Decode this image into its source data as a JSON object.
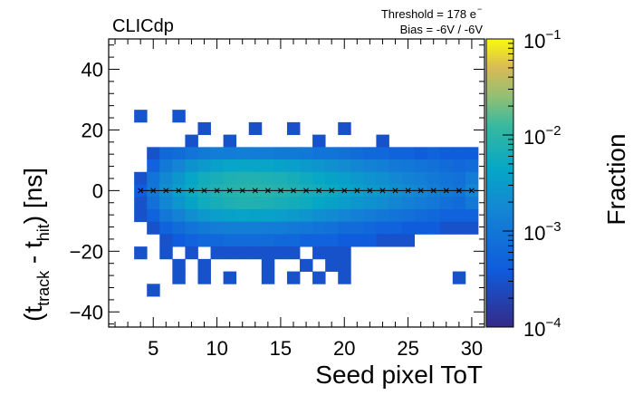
{
  "chart_data": {
    "type": "heatmap",
    "title": "CLICdp",
    "annotations": {
      "threshold": "Threshold = 178 e",
      "threshold_sup": "−",
      "bias": "Bias = -6V / -6V"
    },
    "xlabel": "Seed pixel ToT",
    "ylabel": {
      "open": "(t",
      "sub1": "track",
      "mid": " - t",
      "sub2": "hit",
      "close": ") [ns]"
    },
    "zlabel": "Fraction",
    "xlim": [
      1.5,
      31
    ],
    "ylim": [
      -45,
      50
    ],
    "x_ticks": [
      5,
      10,
      15,
      20,
      25,
      30
    ],
    "y_ticks": [
      -40,
      -20,
      0,
      20,
      40
    ],
    "x_tick_labels": [
      "5",
      "10",
      "15",
      "20",
      "25",
      "30"
    ],
    "y_tick_labels": [
      "−40",
      "−20",
      "0",
      "20",
      "40"
    ],
    "z_scale": "log",
    "zlim": [
      0.0001,
      0.1
    ],
    "z_ticks": [
      {
        "base": "10",
        "exp": "−1",
        "value": 0.1
      },
      {
        "base": "10",
        "exp": "−2",
        "value": 0.01
      },
      {
        "base": "10",
        "exp": "−3",
        "value": 0.001
      },
      {
        "base": "10",
        "exp": "−4",
        "value": 0.0001
      }
    ],
    "bin_width_x": 1,
    "bin_height_y": 4.1,
    "mean_profile": {
      "marker": "x",
      "x": [
        4,
        5,
        6,
        7,
        8,
        9,
        10,
        11,
        12,
        13,
        14,
        15,
        16,
        17,
        18,
        19,
        20,
        21,
        22,
        23,
        24,
        25,
        26,
        27,
        28,
        29,
        30
      ],
      "y": [
        0,
        0,
        0,
        0,
        0,
        0,
        0,
        0,
        0,
        0,
        0,
        0,
        0,
        0,
        0,
        0,
        0,
        0,
        0,
        0,
        0,
        0,
        0,
        0,
        0,
        0,
        0
      ]
    },
    "cells": [
      [
        4,
        24.6,
        0.00032
      ],
      [
        7,
        24.6,
        0.00032
      ],
      [
        9,
        20.5,
        0.00028
      ],
      [
        13,
        20.5,
        0.00028
      ],
      [
        16,
        20.5,
        0.00028
      ],
      [
        20,
        20.5,
        0.00028
      ],
      [
        8,
        16.4,
        0.0003
      ],
      [
        11,
        16.4,
        0.0003
      ],
      [
        18,
        16.4,
        0.0003
      ],
      [
        23,
        16.4,
        0.0003
      ],
      [
        5,
        12.3,
        0.0003
      ],
      [
        6,
        12.3,
        0.0006
      ],
      [
        7,
        12.3,
        0.0007
      ],
      [
        8,
        12.3,
        0.0009
      ],
      [
        9,
        12.3,
        0.0011
      ],
      [
        10,
        12.3,
        0.0012
      ],
      [
        11,
        12.3,
        0.0012
      ],
      [
        12,
        12.3,
        0.0013
      ],
      [
        13,
        12.3,
        0.0012
      ],
      [
        14,
        12.3,
        0.0012
      ],
      [
        15,
        12.3,
        0.0011
      ],
      [
        16,
        12.3,
        0.0011
      ],
      [
        17,
        12.3,
        0.001
      ],
      [
        18,
        12.3,
        0.0009
      ],
      [
        19,
        12.3,
        0.0009
      ],
      [
        20,
        12.3,
        0.0008
      ],
      [
        21,
        12.3,
        0.0007
      ],
      [
        22,
        12.3,
        0.0006
      ],
      [
        23,
        12.3,
        0.0006
      ],
      [
        24,
        12.3,
        0.0005
      ],
      [
        25,
        12.3,
        0.0005
      ],
      [
        26,
        12.3,
        0.0004
      ],
      [
        27,
        12.3,
        0.0005
      ],
      [
        28,
        12.3,
        0.0004
      ],
      [
        29,
        12.3,
        0.0004
      ],
      [
        30,
        12.3,
        0.0004
      ],
      [
        5,
        8.2,
        0.0005
      ],
      [
        6,
        8.2,
        0.0011
      ],
      [
        7,
        8.2,
        0.0016
      ],
      [
        8,
        8.2,
        0.0024
      ],
      [
        9,
        8.2,
        0.003
      ],
      [
        10,
        8.2,
        0.0036
      ],
      [
        11,
        8.2,
        0.0042
      ],
      [
        12,
        8.2,
        0.0045
      ],
      [
        13,
        8.2,
        0.0042
      ],
      [
        14,
        8.2,
        0.0042
      ],
      [
        15,
        8.2,
        0.0038
      ],
      [
        16,
        8.2,
        0.0034
      ],
      [
        17,
        8.2,
        0.003
      ],
      [
        18,
        8.2,
        0.0026
      ],
      [
        19,
        8.2,
        0.0023
      ],
      [
        20,
        8.2,
        0.002
      ],
      [
        21,
        8.2,
        0.0017
      ],
      [
        22,
        8.2,
        0.0015
      ],
      [
        23,
        8.2,
        0.0013
      ],
      [
        24,
        8.2,
        0.0011
      ],
      [
        25,
        8.2,
        0.001
      ],
      [
        26,
        8.2,
        0.0009
      ],
      [
        27,
        8.2,
        0.0008
      ],
      [
        28,
        8.2,
        0.0007
      ],
      [
        29,
        8.2,
        0.0006
      ],
      [
        30,
        8.2,
        0.0007
      ],
      [
        4,
        4.1,
        0.0003
      ],
      [
        5,
        4.1,
        0.0009
      ],
      [
        6,
        4.1,
        0.0018
      ],
      [
        7,
        4.1,
        0.0028
      ],
      [
        8,
        4.1,
        0.0042
      ],
      [
        9,
        4.1,
        0.0058
      ],
      [
        10,
        4.1,
        0.0066
      ],
      [
        11,
        4.1,
        0.0075
      ],
      [
        12,
        4.1,
        0.008
      ],
      [
        13,
        4.1,
        0.0078
      ],
      [
        14,
        4.1,
        0.0074
      ],
      [
        15,
        4.1,
        0.007
      ],
      [
        16,
        4.1,
        0.0062
      ],
      [
        17,
        4.1,
        0.0054
      ],
      [
        18,
        4.1,
        0.0046
      ],
      [
        19,
        4.1,
        0.004
      ],
      [
        20,
        4.1,
        0.0034
      ],
      [
        21,
        4.1,
        0.0029
      ],
      [
        22,
        4.1,
        0.0025
      ],
      [
        23,
        4.1,
        0.0022
      ],
      [
        24,
        4.1,
        0.0018
      ],
      [
        25,
        4.1,
        0.0015
      ],
      [
        26,
        4.1,
        0.0013
      ],
      [
        27,
        4.1,
        0.0011
      ],
      [
        28,
        4.1,
        0.0009
      ],
      [
        29,
        4.1,
        0.0008
      ],
      [
        30,
        4.1,
        0.0012
      ],
      [
        4,
        0,
        0.0004
      ],
      [
        5,
        0,
        0.001
      ],
      [
        6,
        0,
        0.0022
      ],
      [
        7,
        0,
        0.0034
      ],
      [
        8,
        0,
        0.005
      ],
      [
        9,
        0,
        0.0066
      ],
      [
        10,
        0,
        0.0078
      ],
      [
        11,
        0,
        0.0086
      ],
      [
        12,
        0,
        0.0092
      ],
      [
        13,
        0,
        0.0094
      ],
      [
        14,
        0,
        0.009
      ],
      [
        15,
        0,
        0.0085
      ],
      [
        16,
        0,
        0.0076
      ],
      [
        17,
        0,
        0.0066
      ],
      [
        18,
        0,
        0.0058
      ],
      [
        19,
        0,
        0.005
      ],
      [
        20,
        0,
        0.0042
      ],
      [
        21,
        0,
        0.0036
      ],
      [
        22,
        0,
        0.003
      ],
      [
        23,
        0,
        0.0026
      ],
      [
        24,
        0,
        0.0022
      ],
      [
        25,
        0,
        0.0019
      ],
      [
        26,
        0,
        0.0016
      ],
      [
        27,
        0,
        0.0013
      ],
      [
        28,
        0,
        0.0011
      ],
      [
        29,
        0,
        0.0009
      ],
      [
        30,
        0,
        0.0016
      ],
      [
        4,
        -4.1,
        0.0003
      ],
      [
        5,
        -4.1,
        0.0008
      ],
      [
        6,
        -4.1,
        0.0017
      ],
      [
        7,
        -4.1,
        0.0026
      ],
      [
        8,
        -4.1,
        0.004
      ],
      [
        9,
        -4.1,
        0.0055
      ],
      [
        10,
        -4.1,
        0.0064
      ],
      [
        11,
        -4.1,
        0.0072
      ],
      [
        12,
        -4.1,
        0.0078
      ],
      [
        13,
        -4.1,
        0.0076
      ],
      [
        14,
        -4.1,
        0.0072
      ],
      [
        15,
        -4.1,
        0.0066
      ],
      [
        16,
        -4.1,
        0.006
      ],
      [
        17,
        -4.1,
        0.0052
      ],
      [
        18,
        -4.1,
        0.0045
      ],
      [
        19,
        -4.1,
        0.0038
      ],
      [
        20,
        -4.1,
        0.0032
      ],
      [
        21,
        -4.1,
        0.0027
      ],
      [
        22,
        -4.1,
        0.0023
      ],
      [
        23,
        -4.1,
        0.002
      ],
      [
        24,
        -4.1,
        0.0017
      ],
      [
        25,
        -4.1,
        0.0014
      ],
      [
        26,
        -4.1,
        0.0012
      ],
      [
        27,
        -4.1,
        0.001
      ],
      [
        28,
        -4.1,
        0.0008
      ],
      [
        29,
        -4.1,
        0.0007
      ],
      [
        30,
        -4.1,
        0.0011
      ],
      [
        4,
        -8.2,
        0.0003
      ],
      [
        5,
        -8.2,
        0.0005
      ],
      [
        6,
        -8.2,
        0.001
      ],
      [
        7,
        -8.2,
        0.0015
      ],
      [
        8,
        -8.2,
        0.0022
      ],
      [
        9,
        -8.2,
        0.0029
      ],
      [
        10,
        -8.2,
        0.0034
      ],
      [
        11,
        -8.2,
        0.0038
      ],
      [
        12,
        -8.2,
        0.0041
      ],
      [
        13,
        -8.2,
        0.004
      ],
      [
        14,
        -8.2,
        0.0038
      ],
      [
        15,
        -8.2,
        0.0034
      ],
      [
        16,
        -8.2,
        0.003
      ],
      [
        17,
        -8.2,
        0.0026
      ],
      [
        18,
        -8.2,
        0.0022
      ],
      [
        19,
        -8.2,
        0.0019
      ],
      [
        20,
        -8.2,
        0.0016
      ],
      [
        21,
        -8.2,
        0.0014
      ],
      [
        22,
        -8.2,
        0.0012
      ],
      [
        23,
        -8.2,
        0.001
      ],
      [
        24,
        -8.2,
        0.0009
      ],
      [
        25,
        -8.2,
        0.0008
      ],
      [
        26,
        -8.2,
        0.0007
      ],
      [
        27,
        -8.2,
        0.0006
      ],
      [
        28,
        -8.2,
        0.0005
      ],
      [
        29,
        -8.2,
        0.0005
      ],
      [
        30,
        -8.2,
        0.0005
      ],
      [
        5,
        -12.3,
        0.0003
      ],
      [
        6,
        -12.3,
        0.0005
      ],
      [
        7,
        -12.3,
        0.0007
      ],
      [
        8,
        -12.3,
        0.0009
      ],
      [
        9,
        -12.3,
        0.0011
      ],
      [
        10,
        -12.3,
        0.0012
      ],
      [
        11,
        -12.3,
        0.0013
      ],
      [
        12,
        -12.3,
        0.0013
      ],
      [
        13,
        -12.3,
        0.0013
      ],
      [
        14,
        -12.3,
        0.0012
      ],
      [
        15,
        -12.3,
        0.0012
      ],
      [
        16,
        -12.3,
        0.0011
      ],
      [
        17,
        -12.3,
        0.001
      ],
      [
        18,
        -12.3,
        0.0009
      ],
      [
        19,
        -12.3,
        0.0008
      ],
      [
        20,
        -12.3,
        0.0007
      ],
      [
        21,
        -12.3,
        0.0007
      ],
      [
        22,
        -12.3,
        0.0006
      ],
      [
        23,
        -12.3,
        0.0005
      ],
      [
        24,
        -12.3,
        0.0005
      ],
      [
        25,
        -12.3,
        0.0004
      ],
      [
        26,
        -12.3,
        0.0004
      ],
      [
        27,
        -12.3,
        0.0004
      ],
      [
        28,
        -12.3,
        0.0003
      ],
      [
        29,
        -12.3,
        0.0003
      ],
      [
        30,
        -12.3,
        0.0003
      ],
      [
        6,
        -16.4,
        0.0003
      ],
      [
        7,
        -16.4,
        0.0004
      ],
      [
        8,
        -16.4,
        0.0005
      ],
      [
        9,
        -16.4,
        0.0006
      ],
      [
        10,
        -16.4,
        0.0006
      ],
      [
        11,
        -16.4,
        0.0007
      ],
      [
        12,
        -16.4,
        0.0007
      ],
      [
        13,
        -16.4,
        0.0007
      ],
      [
        14,
        -16.4,
        0.0007
      ],
      [
        15,
        -16.4,
        0.0006
      ],
      [
        16,
        -16.4,
        0.0006
      ],
      [
        17,
        -16.4,
        0.0005
      ],
      [
        18,
        -16.4,
        0.0005
      ],
      [
        19,
        -16.4,
        0.0005
      ],
      [
        20,
        -16.4,
        0.0004
      ],
      [
        21,
        -16.4,
        0.0004
      ],
      [
        22,
        -16.4,
        0.0004
      ],
      [
        23,
        -16.4,
        0.0003
      ],
      [
        24,
        -16.4,
        0.0003
      ],
      [
        25,
        -16.4,
        0.0003
      ],
      [
        4,
        -20.5,
        0.0003
      ],
      [
        6,
        -20.5,
        0.0003
      ],
      [
        8,
        -20.5,
        0.0003
      ],
      [
        10,
        -20.5,
        0.0003
      ],
      [
        11,
        -20.5,
        0.0003
      ],
      [
        12,
        -20.5,
        0.0003
      ],
      [
        13,
        -20.5,
        0.0003
      ],
      [
        14,
        -20.5,
        0.0003
      ],
      [
        15,
        -20.5,
        0.0003
      ],
      [
        16,
        -20.5,
        0.0003
      ],
      [
        18,
        -20.5,
        0.0003
      ],
      [
        19,
        -20.5,
        0.0003
      ],
      [
        20,
        -20.5,
        0.0003
      ],
      [
        7,
        -24.6,
        0.0003
      ],
      [
        9,
        -24.6,
        0.0003
      ],
      [
        14,
        -24.6,
        0.0003
      ],
      [
        17,
        -24.6,
        0.0003
      ],
      [
        19,
        -24.6,
        0.0003
      ],
      [
        20,
        -24.6,
        0.0003
      ],
      [
        7,
        -28.7,
        0.0003
      ],
      [
        9,
        -28.7,
        0.0003
      ],
      [
        11,
        -28.7,
        0.0003
      ],
      [
        14,
        -28.7,
        0.0003
      ],
      [
        16,
        -28.7,
        0.0003
      ],
      [
        18,
        -28.7,
        0.0003
      ],
      [
        20,
        -28.7,
        0.0003
      ],
      [
        29,
        -28.7,
        0.0003
      ],
      [
        5,
        -32.8,
        0.0003
      ]
    ]
  }
}
